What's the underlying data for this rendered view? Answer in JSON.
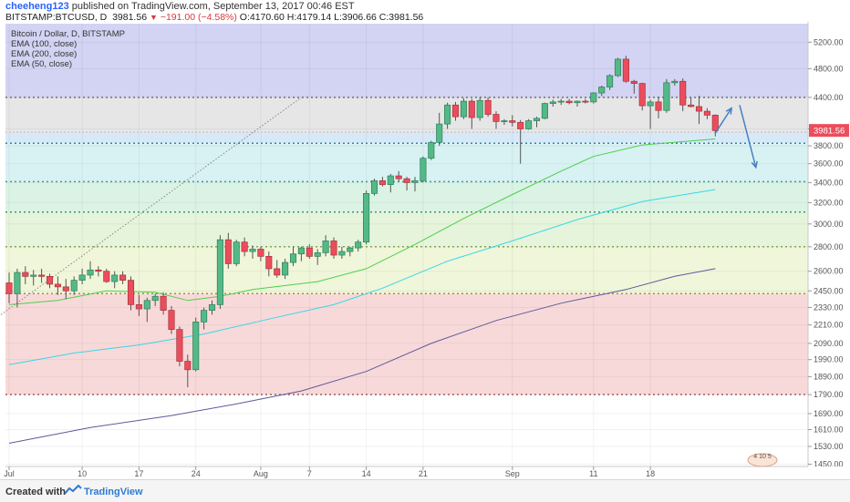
{
  "header": {
    "publisher": "cheeheng123",
    "published_text": "published on TradingView.com, September 13, 2017 00:46 EST",
    "symbol": "BITSTAMP:BTCUSD, D",
    "last": "3981.56",
    "change": "−191.00 (−4.58%)",
    "open": "O:4170.60",
    "high": "H:4179.14",
    "low": "L:3906.66",
    "close": "C:3981.56"
  },
  "legend": {
    "title": "Bitcoin / Dollar, D, BITSTAMP",
    "items": [
      "EMA (100, close)",
      "EMA (200, close)",
      "EMA (50, close)"
    ]
  },
  "footer": {
    "created": "Created with",
    "brand": "TradingView"
  },
  "watermark": "4 10 5",
  "colors": {
    "up": "#53b987",
    "down": "#eb4d5c",
    "ema50": "#4cd04c",
    "ema100": "#35d8e8",
    "ema200": "#5a5a9c",
    "arrow": "#4a7fc1"
  },
  "chart_data": {
    "type": "candlestick",
    "title": "Bitcoin / Dollar, D, BITSTAMP",
    "x_tick_labels": [
      "Jul",
      "10",
      "17",
      "24",
      "Aug",
      "7",
      "14",
      "21",
      "Sep",
      "11",
      "18"
    ],
    "x_ticks_day_index": [
      0,
      9,
      16,
      23,
      31,
      37,
      44,
      51,
      62,
      72,
      79
    ],
    "y_tick_labels": [
      "5200.00",
      "4800.00",
      "4400.00",
      "4000.00",
      "3800.00",
      "3600.00",
      "3400.00",
      "3200.00",
      "3000.00",
      "2800.00",
      "2600.00",
      "2450.00",
      "2330.00",
      "2210.00",
      "2090.00",
      "1990.00",
      "1890.00",
      "1790.00",
      "1690.00",
      "1610.00",
      "1530.00",
      "1450.00"
    ],
    "y_tick_values": [
      5200,
      4800,
      4400,
      4000,
      3800,
      3600,
      3400,
      3200,
      3000,
      2800,
      2600,
      2450,
      2330,
      2210,
      2090,
      1990,
      1890,
      1790,
      1690,
      1610,
      1530,
      1450
    ],
    "y_scale": "log",
    "ylim": [
      1440,
      5500
    ],
    "last_price_label": "3981.56",
    "fib_levels": [
      4400,
      3960,
      3830,
      3410,
      3110,
      2800,
      2430,
      1790
    ],
    "candles": [
      {
        "o": 2510,
        "h": 2590,
        "l": 2360,
        "c": 2430
      },
      {
        "o": 2430,
        "h": 2620,
        "l": 2330,
        "c": 2590
      },
      {
        "o": 2590,
        "h": 2640,
        "l": 2500,
        "c": 2560
      },
      {
        "o": 2560,
        "h": 2610,
        "l": 2490,
        "c": 2570
      },
      {
        "o": 2570,
        "h": 2620,
        "l": 2510,
        "c": 2560
      },
      {
        "o": 2560,
        "h": 2580,
        "l": 2470,
        "c": 2500
      },
      {
        "o": 2500,
        "h": 2560,
        "l": 2420,
        "c": 2480
      },
      {
        "o": 2480,
        "h": 2540,
        "l": 2390,
        "c": 2450
      },
      {
        "o": 2450,
        "h": 2560,
        "l": 2420,
        "c": 2530
      },
      {
        "o": 2530,
        "h": 2620,
        "l": 2500,
        "c": 2570
      },
      {
        "o": 2570,
        "h": 2680,
        "l": 2540,
        "c": 2610
      },
      {
        "o": 2610,
        "h": 2640,
        "l": 2560,
        "c": 2600
      },
      {
        "o": 2600,
        "h": 2620,
        "l": 2510,
        "c": 2520
      },
      {
        "o": 2520,
        "h": 2600,
        "l": 2470,
        "c": 2570
      },
      {
        "o": 2570,
        "h": 2600,
        "l": 2500,
        "c": 2530
      },
      {
        "o": 2530,
        "h": 2560,
        "l": 2310,
        "c": 2350
      },
      {
        "o": 2350,
        "h": 2420,
        "l": 2270,
        "c": 2320
      },
      {
        "o": 2320,
        "h": 2400,
        "l": 2230,
        "c": 2380
      },
      {
        "o": 2380,
        "h": 2430,
        "l": 2340,
        "c": 2410
      },
      {
        "o": 2410,
        "h": 2440,
        "l": 2280,
        "c": 2310
      },
      {
        "o": 2310,
        "h": 2340,
        "l": 2150,
        "c": 2180
      },
      {
        "o": 2180,
        "h": 2200,
        "l": 1950,
        "c": 1980
      },
      {
        "o": 1980,
        "h": 2020,
        "l": 1830,
        "c": 1930
      },
      {
        "o": 1930,
        "h": 2260,
        "l": 1920,
        "c": 2230
      },
      {
        "o": 2230,
        "h": 2330,
        "l": 2180,
        "c": 2310
      },
      {
        "o": 2310,
        "h": 2380,
        "l": 2280,
        "c": 2350
      },
      {
        "o": 2350,
        "h": 2900,
        "l": 2320,
        "c": 2860
      },
      {
        "o": 2860,
        "h": 2920,
        "l": 2620,
        "c": 2660
      },
      {
        "o": 2660,
        "h": 2860,
        "l": 2640,
        "c": 2840
      },
      {
        "o": 2840,
        "h": 2880,
        "l": 2720,
        "c": 2760
      },
      {
        "o": 2760,
        "h": 2810,
        "l": 2700,
        "c": 2780
      },
      {
        "o": 2780,
        "h": 2800,
        "l": 2680,
        "c": 2720
      },
      {
        "o": 2720,
        "h": 2760,
        "l": 2560,
        "c": 2620
      },
      {
        "o": 2620,
        "h": 2690,
        "l": 2550,
        "c": 2570
      },
      {
        "o": 2570,
        "h": 2700,
        "l": 2540,
        "c": 2670
      },
      {
        "o": 2670,
        "h": 2800,
        "l": 2640,
        "c": 2740
      },
      {
        "o": 2740,
        "h": 2800,
        "l": 2680,
        "c": 2790
      },
      {
        "o": 2790,
        "h": 2820,
        "l": 2700,
        "c": 2720
      },
      {
        "o": 2720,
        "h": 2780,
        "l": 2650,
        "c": 2750
      },
      {
        "o": 2750,
        "h": 2900,
        "l": 2720,
        "c": 2850
      },
      {
        "o": 2850,
        "h": 2880,
        "l": 2700,
        "c": 2730
      },
      {
        "o": 2730,
        "h": 2800,
        "l": 2700,
        "c": 2760
      },
      {
        "o": 2760,
        "h": 2800,
        "l": 2720,
        "c": 2790
      },
      {
        "o": 2790,
        "h": 2860,
        "l": 2760,
        "c": 2840
      },
      {
        "o": 2840,
        "h": 3320,
        "l": 2820,
        "c": 3290
      },
      {
        "o": 3290,
        "h": 3440,
        "l": 3270,
        "c": 3420
      },
      {
        "o": 3420,
        "h": 3460,
        "l": 3360,
        "c": 3380
      },
      {
        "o": 3380,
        "h": 3490,
        "l": 3300,
        "c": 3470
      },
      {
        "o": 3470,
        "h": 3520,
        "l": 3410,
        "c": 3440
      },
      {
        "o": 3440,
        "h": 3460,
        "l": 3320,
        "c": 3400
      },
      {
        "o": 3400,
        "h": 3460,
        "l": 3310,
        "c": 3420
      },
      {
        "o": 3420,
        "h": 3680,
        "l": 3400,
        "c": 3660
      },
      {
        "o": 3660,
        "h": 3860,
        "l": 3640,
        "c": 3840
      },
      {
        "o": 3840,
        "h": 4200,
        "l": 3800,
        "c": 4060
      },
      {
        "o": 4060,
        "h": 4330,
        "l": 4000,
        "c": 4300
      },
      {
        "o": 4300,
        "h": 4340,
        "l": 4100,
        "c": 4150
      },
      {
        "o": 4150,
        "h": 4390,
        "l": 4120,
        "c": 4350
      },
      {
        "o": 4350,
        "h": 4380,
        "l": 4000,
        "c": 4140
      },
      {
        "o": 4140,
        "h": 4400,
        "l": 4100,
        "c": 4360
      },
      {
        "o": 4360,
        "h": 4400,
        "l": 4150,
        "c": 4180
      },
      {
        "o": 4180,
        "h": 4220,
        "l": 4000,
        "c": 4090
      },
      {
        "o": 4090,
        "h": 4120,
        "l": 4050,
        "c": 4100
      },
      {
        "o": 4100,
        "h": 4170,
        "l": 4030,
        "c": 4080
      },
      {
        "o": 4080,
        "h": 4110,
        "l": 3600,
        "c": 4000
      },
      {
        "o": 4000,
        "h": 4120,
        "l": 3990,
        "c": 4100
      },
      {
        "o": 4100,
        "h": 4150,
        "l": 4020,
        "c": 4130
      },
      {
        "o": 4130,
        "h": 4330,
        "l": 4120,
        "c": 4320
      },
      {
        "o": 4320,
        "h": 4370,
        "l": 4280,
        "c": 4340
      },
      {
        "o": 4340,
        "h": 4380,
        "l": 4300,
        "c": 4350
      },
      {
        "o": 4350,
        "h": 4380,
        "l": 4310,
        "c": 4330
      },
      {
        "o": 4330,
        "h": 4360,
        "l": 4280,
        "c": 4350
      },
      {
        "o": 4350,
        "h": 4380,
        "l": 4320,
        "c": 4340
      },
      {
        "o": 4340,
        "h": 4470,
        "l": 4320,
        "c": 4460
      },
      {
        "o": 4460,
        "h": 4560,
        "l": 4420,
        "c": 4540
      },
      {
        "o": 4540,
        "h": 4720,
        "l": 4500,
        "c": 4700
      },
      {
        "o": 4700,
        "h": 4960,
        "l": 4680,
        "c": 4940
      },
      {
        "o": 4940,
        "h": 4990,
        "l": 4600,
        "c": 4620
      },
      {
        "o": 4620,
        "h": 4640,
        "l": 4450,
        "c": 4590
      },
      {
        "o": 4590,
        "h": 4600,
        "l": 4230,
        "c": 4290
      },
      {
        "o": 4290,
        "h": 4370,
        "l": 4000,
        "c": 4340
      },
      {
        "o": 4340,
        "h": 4410,
        "l": 4130,
        "c": 4230
      },
      {
        "o": 4230,
        "h": 4650,
        "l": 4200,
        "c": 4600
      },
      {
        "o": 4600,
        "h": 4650,
        "l": 4560,
        "c": 4620
      },
      {
        "o": 4620,
        "h": 4660,
        "l": 4220,
        "c": 4300
      },
      {
        "o": 4300,
        "h": 4400,
        "l": 4270,
        "c": 4280
      },
      {
        "o": 4280,
        "h": 4420,
        "l": 4060,
        "c": 4220
      },
      {
        "o": 4220,
        "h": 4260,
        "l": 4120,
        "c": 4170
      },
      {
        "o": 4170,
        "h": 4180,
        "l": 3910,
        "c": 3980
      }
    ],
    "ema50": [
      [
        0,
        2350
      ],
      [
        6,
        2380
      ],
      [
        12,
        2450
      ],
      [
        18,
        2440
      ],
      [
        22,
        2380
      ],
      [
        26,
        2410
      ],
      [
        30,
        2460
      ],
      [
        38,
        2520
      ],
      [
        44,
        2620
      ],
      [
        50,
        2820
      ],
      [
        56,
        3050
      ],
      [
        62,
        3280
      ],
      [
        68,
        3520
      ],
      [
        72,
        3680
      ],
      [
        78,
        3810
      ],
      [
        87,
        3880
      ]
    ],
    "ema100": [
      [
        0,
        1960
      ],
      [
        8,
        2030
      ],
      [
        16,
        2080
      ],
      [
        24,
        2150
      ],
      [
        32,
        2250
      ],
      [
        40,
        2350
      ],
      [
        46,
        2470
      ],
      [
        54,
        2680
      ],
      [
        62,
        2850
      ],
      [
        70,
        3040
      ],
      [
        78,
        3210
      ],
      [
        87,
        3330
      ]
    ],
    "ema200": [
      [
        0,
        1545
      ],
      [
        10,
        1620
      ],
      [
        20,
        1680
      ],
      [
        28,
        1740
      ],
      [
        36,
        1810
      ],
      [
        44,
        1920
      ],
      [
        52,
        2090
      ],
      [
        60,
        2240
      ],
      [
        68,
        2360
      ],
      [
        76,
        2460
      ],
      [
        82,
        2560
      ],
      [
        87,
        2620
      ]
    ],
    "arrow_up": [
      [
        87,
        3950
      ],
      [
        89,
        4260
      ]
    ],
    "arrow_down": [
      [
        90,
        4300
      ],
      [
        92,
        3560
      ]
    ],
    "dotted_trend": [
      [
        -1,
        2280
      ],
      [
        36,
        4400
      ]
    ]
  }
}
